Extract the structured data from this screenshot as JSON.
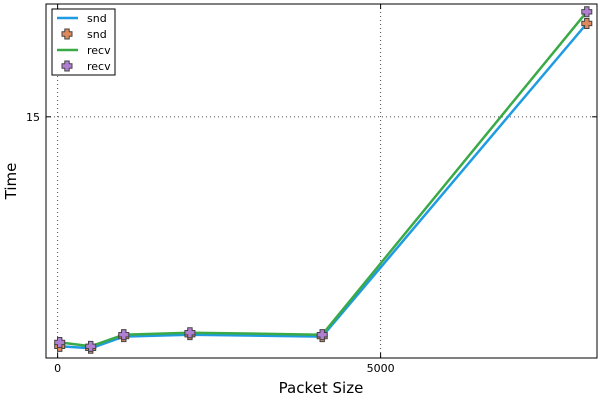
{
  "chart_data": {
    "type": "line",
    "xlabel": "Packet Size",
    "ylabel": "Time",
    "xlim": [
      -180,
      8350
    ],
    "ylim": [
      2.6,
      20.8
    ],
    "xticks": [
      0,
      5000
    ],
    "yticks": [
      15
    ],
    "grid": true,
    "legend_position": "top-left",
    "x": [
      32,
      512,
      1024,
      2048,
      4096,
      8192
    ],
    "series": [
      {
        "name": "snd",
        "kind": "line",
        "color": "#1f9be3",
        "values": [
          3.2,
          3.1,
          3.7,
          3.8,
          3.7,
          19.8
        ]
      },
      {
        "name": "snd",
        "kind": "markers",
        "color": "#e0895c",
        "values": [
          3.2,
          3.1,
          3.7,
          3.8,
          3.7,
          19.8
        ]
      },
      {
        "name": "recv",
        "kind": "line",
        "color": "#3aaa47",
        "values": [
          3.4,
          3.2,
          3.8,
          3.9,
          3.8,
          20.4
        ]
      },
      {
        "name": "recv",
        "kind": "markers",
        "color": "#b07fd1",
        "values": [
          3.4,
          3.2,
          3.8,
          3.9,
          3.8,
          20.4
        ]
      }
    ]
  }
}
